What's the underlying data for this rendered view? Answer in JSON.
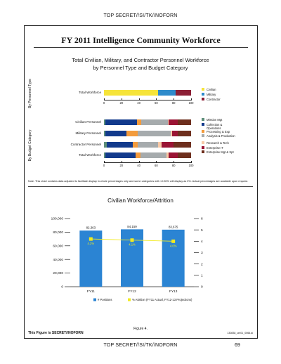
{
  "banner_top": "TOP SECRET//SI/TK//NOFORN",
  "banner_bottom": "TOP SECRET//SI/TK//NOFORN",
  "page_number": "69",
  "main_title": "FY 2011 Intelligence Community Workforce",
  "note": "Note: This chart contains data adjusted to facilitate display in whole percentages only and some categories with <0.50% will display as 0%. Actual percentages are available upon request.",
  "figure_caption": "Figure 4.",
  "footer_left": "This Figure is SECRET//NOFORN",
  "footer_right": "130838_unl01_0066.ai",
  "chart_data": [
    {
      "type": "bar",
      "orientation": "horizontal-stacked",
      "title": "Total Civilian, Military, and Contractor Personnel Workforce",
      "subtitle": "by Personnel Type and Budget Category",
      "group_label": "By Personnel Type",
      "categories": [
        "Total Workforce"
      ],
      "xlim": [
        0,
        100
      ],
      "xticks": [
        "0",
        "20",
        "40",
        "60",
        "80",
        "100"
      ],
      "legend_position": "right",
      "series": [
        {
          "name": "Civilian",
          "color": "#f6e43a",
          "values": [
            62
          ]
        },
        {
          "name": "Military",
          "color": "#2e8bcb",
          "values": [
            20
          ]
        },
        {
          "name": "Contractor",
          "color": "#8c1f35",
          "values": [
            18
          ]
        }
      ]
    },
    {
      "type": "bar",
      "orientation": "horizontal-stacked",
      "group_label": "By Budget Category",
      "categories": [
        "Civilian Personnel",
        "Military Personnel",
        "Contractor Personnel",
        "Total Workforce"
      ],
      "xlim": [
        0,
        100
      ],
      "xticks": [
        "0",
        "20",
        "40",
        "60",
        "80",
        "100"
      ],
      "legend_position": "right",
      "series": [
        {
          "name": "Mission Mgt",
          "color": "#5d8f7a",
          "values": [
            2,
            2,
            3,
            2
          ]
        },
        {
          "name": "Collection & Operations",
          "color": "#123a8c",
          "values": [
            36,
            24,
            30,
            34
          ]
        },
        {
          "name": "Processing & Exp",
          "color": "#f39b3c",
          "values": [
            5,
            13,
            6,
            6
          ]
        },
        {
          "name": "Analysis & Production",
          "color": "#a6abad",
          "values": [
            30,
            38,
            23,
            30
          ]
        },
        {
          "name": "Research & Tech",
          "color": "#f7c9a6",
          "values": [
            1,
            1,
            4,
            2
          ]
        },
        {
          "name": "Enterprise IT",
          "color": "#9a1434",
          "values": [
            11,
            7,
            14,
            11
          ]
        },
        {
          "name": "Enterprise Mgt & Spt",
          "color": "#6e2f1e",
          "values": [
            15,
            15,
            20,
            15
          ]
        }
      ]
    },
    {
      "type": "bar+line",
      "title": "Civilian Workforce/Attrition",
      "categories": [
        "FY11",
        "FY12",
        "FY13"
      ],
      "ylim": [
        0,
        100000
      ],
      "yticks": [
        "0",
        "20,000",
        "40,000",
        "60,000",
        "80,000",
        "100,000"
      ],
      "y2lim": [
        0,
        6
      ],
      "y2ticks": [
        "0",
        "1",
        "2",
        "3",
        "4",
        "5",
        "6"
      ],
      "legend_position": "bottom",
      "series": [
        {
          "name": "# Positions",
          "color": "#2b84d3",
          "values": [
            82363,
            84159,
            83675
          ],
          "labels": [
            "82,363",
            "84,159",
            "83,675"
          ]
        },
        {
          "name": "% Attrition (FY11 Actual, FY12-13 Projections)",
          "color": "#f2ea1f",
          "values": [
            4.2,
            4.1,
            4.0
          ],
          "labels": [
            "4.2%",
            "4.1%",
            "4.0%"
          ]
        }
      ]
    }
  ]
}
